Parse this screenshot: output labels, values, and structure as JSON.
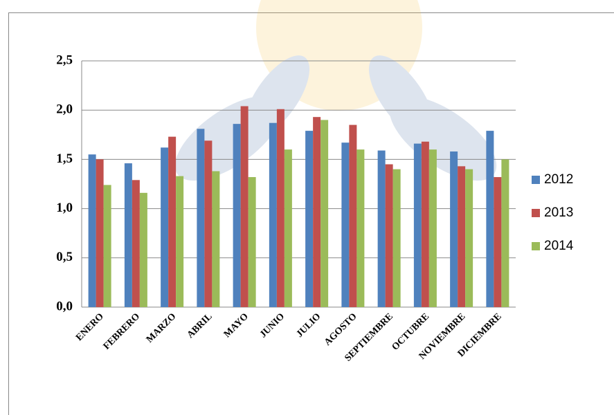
{
  "chart_data": {
    "type": "bar",
    "categories": [
      "ENERO",
      "FEBRERO",
      "MARZO",
      "ABRIL",
      "MAYO",
      "JUNIO",
      "JULIO",
      "AGOSTO",
      "SEPTIEMBRE",
      "OCTUBRE",
      "NOVIEMBRE",
      "DICIEMBRE"
    ],
    "series": [
      {
        "name": "2012",
        "color": "#4f81bd",
        "values": [
          1.55,
          1.46,
          1.62,
          1.81,
          1.86,
          1.87,
          1.79,
          1.67,
          1.59,
          1.66,
          1.58,
          1.79
        ]
      },
      {
        "name": "2013",
        "color": "#c0504d",
        "values": [
          1.5,
          1.29,
          1.73,
          1.69,
          2.04,
          2.01,
          1.93,
          1.85,
          1.45,
          1.68,
          1.43,
          1.32
        ]
      },
      {
        "name": "2014",
        "color": "#9bbb59",
        "values": [
          1.24,
          1.16,
          1.33,
          1.38,
          1.32,
          1.6,
          1.9,
          1.6,
          1.4,
          1.6,
          1.4,
          1.5
        ]
      }
    ],
    "ylim": [
      0,
      2.5
    ],
    "yticks": [
      {
        "value": 0,
        "label": "0,0"
      },
      {
        "value": 0.5,
        "label": "0,5"
      },
      {
        "value": 1,
        "label": "1,0"
      },
      {
        "value": 1.5,
        "label": "1,5"
      },
      {
        "value": 2,
        "label": "2,0"
      },
      {
        "value": 2.5,
        "label": "2,5"
      }
    ],
    "grid": true,
    "legend": "right"
  }
}
